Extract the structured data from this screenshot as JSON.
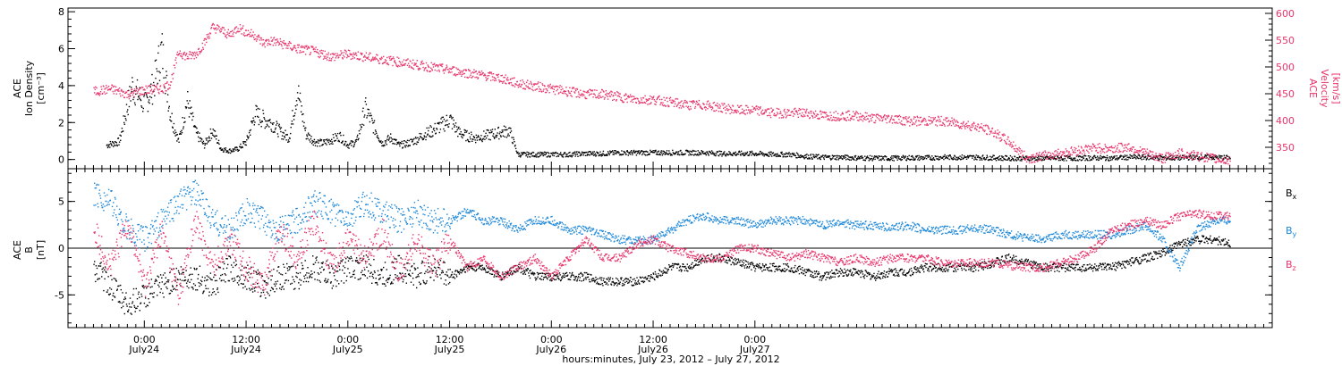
{
  "chart_data": [
    {
      "type": "scatter",
      "panel": "top",
      "ylabel_lines": [
        "ACE",
        "Ion Density",
        "[cm⁻³]"
      ],
      "ylim": [
        -0.5,
        8.2
      ],
      "yticks": [
        "0",
        "2",
        "4",
        "6",
        "8"
      ],
      "ytick_values": [
        0,
        2,
        4,
        6,
        8
      ],
      "y2label_lines": [
        "ACE",
        "Velocity",
        "[km/s]"
      ],
      "y2lim": [
        310,
        610
      ],
      "y2ticks": [
        "350",
        "400",
        "450",
        "500",
        "550",
        "600"
      ],
      "y2tick_values": [
        350,
        400,
        450,
        500,
        550,
        600
      ],
      "series": [
        {
          "axis": "left",
          "color": "#000000",
          "x": [
            -4.5,
            -3,
            -1.5,
            0,
            1,
            2,
            3,
            4,
            5,
            6,
            7,
            8,
            9,
            10,
            11,
            12,
            13,
            14,
            15,
            16,
            17,
            18,
            19,
            20,
            21,
            22,
            23,
            24,
            25,
            26,
            27,
            28,
            29,
            30,
            31,
            32,
            33,
            34,
            35,
            36,
            37,
            38,
            39,
            40,
            41,
            42,
            43,
            44,
            46,
            48,
            50,
            52,
            54,
            56,
            58,
            60,
            62,
            64,
            66,
            68,
            70,
            72,
            74,
            76,
            78,
            80,
            82,
            84,
            86,
            88,
            90,
            92,
            94,
            96,
            98,
            100,
            102,
            104,
            106,
            108,
            110,
            112,
            114,
            116,
            118,
            120,
            122,
            124,
            126,
            128
          ],
          "y": [
            0.8,
            1.0,
            4.0,
            3.0,
            4.0,
            6.0,
            2.5,
            1.0,
            3.2,
            1.5,
            0.8,
            1.6,
            0.6,
            0.5,
            0.6,
            1.0,
            2.5,
            2.2,
            2.0,
            1.5,
            1.2,
            3.8,
            1.4,
            1.0,
            0.9,
            1.1,
            1.3,
            0.8,
            1.0,
            2.8,
            1.8,
            0.9,
            1.2,
            0.8,
            0.9,
            1.1,
            1.4,
            1.6,
            1.9,
            2.2,
            1.5,
            1.3,
            1.2,
            1.3,
            1.4,
            1.5,
            1.6,
            0.3,
            0.3,
            0.3,
            0.3,
            0.35,
            0.35,
            0.4,
            0.4,
            0.4,
            0.4,
            0.4,
            0.4,
            0.35,
            0.35,
            0.35,
            0.3,
            0.3,
            0.2,
            0.15,
            0.15,
            0.12,
            0.1,
            0.1,
            0.12,
            0.12,
            0.15,
            0.15,
            0.15,
            0.12,
            0.1,
            0.1,
            0.1,
            0.1,
            0.1,
            0.12,
            0.1,
            0.15,
            0.15,
            0.12,
            0.12,
            0.15,
            0.15,
            0.12
          ]
        },
        {
          "axis": "right",
          "color": "#e8356b",
          "x": [
            -6,
            -4,
            -2,
            0,
            2,
            3,
            4,
            5,
            6,
            7,
            8,
            9,
            10,
            11,
            12,
            13,
            14,
            15,
            16,
            17,
            18,
            20,
            22,
            24,
            26,
            28,
            30,
            32,
            34,
            36,
            38,
            40,
            42,
            44,
            46,
            48,
            50,
            52,
            54,
            56,
            58,
            60,
            62,
            64,
            66,
            68,
            70,
            72,
            74,
            76,
            78,
            80,
            82,
            84,
            86,
            88,
            90,
            92,
            94,
            96,
            98,
            100,
            102,
            104,
            106,
            108,
            110,
            112,
            114,
            116,
            118,
            120,
            122,
            124,
            126,
            128
          ],
          "y": [
            455,
            460,
            450,
            458,
            460,
            470,
            530,
            520,
            525,
            545,
            575,
            570,
            560,
            575,
            565,
            560,
            545,
            550,
            545,
            540,
            535,
            530,
            520,
            525,
            520,
            515,
            510,
            505,
            500,
            495,
            490,
            485,
            480,
            470,
            465,
            460,
            455,
            450,
            450,
            445,
            440,
            440,
            435,
            430,
            430,
            425,
            420,
            420,
            415,
            415,
            415,
            410,
            410,
            410,
            405,
            405,
            400,
            400,
            400,
            395,
            390,
            380,
            360,
            330,
            335,
            340,
            345,
            350,
            348,
            352,
            340,
            330,
            340,
            335,
            330,
            325
          ]
        }
      ]
    },
    {
      "type": "scatter",
      "panel": "bottom",
      "ylabel_lines": [
        "ACE",
        "B",
        "[nT]"
      ],
      "ylim": [
        -8.5,
        8.5
      ],
      "yticks": [
        "-5",
        "0",
        "5"
      ],
      "ytick_values": [
        -5,
        0,
        5
      ],
      "zero_line": true,
      "legend_position": "right",
      "series": [
        {
          "name": "Bx",
          "label_main": "B",
          "label_sub": "x",
          "color": "#000000",
          "x": [
            -6,
            -4,
            -2,
            0,
            2,
            4,
            6,
            8,
            10,
            12,
            14,
            16,
            18,
            20,
            22,
            24,
            26,
            28,
            30,
            32,
            34,
            36,
            38,
            40,
            42,
            44,
            46,
            48,
            50,
            52,
            54,
            56,
            58,
            60,
            62,
            64,
            66,
            68,
            70,
            72,
            74,
            76,
            78,
            80,
            82,
            84,
            86,
            88,
            90,
            92,
            94,
            96,
            98,
            100,
            102,
            104,
            106,
            108,
            110,
            112,
            114,
            116,
            118,
            120,
            122,
            124,
            126,
            128
          ],
          "y": [
            -2,
            -4,
            -6,
            -5,
            -4,
            -3,
            -3,
            -4,
            -2,
            -3,
            -4,
            -3,
            -3,
            -2,
            -3,
            -2,
            -2,
            -3,
            -2,
            -3,
            -2,
            -3,
            -2,
            -2,
            -3,
            -2,
            -3,
            -3,
            -3,
            -3,
            -3.5,
            -3.5,
            -3.5,
            -3,
            -2,
            -2,
            -1,
            -1,
            -1.5,
            -2,
            -2,
            -2,
            -2.5,
            -3,
            -2.5,
            -2.5,
            -3,
            -2.5,
            -2.5,
            -2,
            -2,
            -2,
            -2,
            -1.5,
            -1,
            -1.5,
            -2,
            -2,
            -2,
            -2,
            -2,
            -1.5,
            -1,
            -0.5,
            0.5,
            1,
            1,
            0.5
          ]
        },
        {
          "name": "By",
          "label_main": "B",
          "label_sub": "y",
          "color": "#1e88d8",
          "x": [
            -6,
            -4,
            -2,
            0,
            2,
            4,
            6,
            8,
            10,
            12,
            14,
            16,
            18,
            20,
            22,
            24,
            26,
            28,
            30,
            32,
            34,
            36,
            38,
            40,
            42,
            44,
            46,
            48,
            50,
            52,
            54,
            56,
            58,
            60,
            62,
            64,
            66,
            68,
            70,
            72,
            74,
            76,
            78,
            80,
            82,
            84,
            86,
            88,
            90,
            92,
            94,
            96,
            98,
            100,
            102,
            104,
            106,
            108,
            110,
            112,
            114,
            116,
            118,
            120,
            122,
            124,
            126,
            128
          ],
          "y": [
            6,
            5,
            2,
            1,
            3,
            5,
            6,
            3,
            2,
            4,
            3,
            2,
            3,
            5,
            4,
            3,
            5,
            4,
            3,
            4,
            3,
            3,
            4,
            3,
            3,
            2,
            3,
            3,
            2,
            2,
            1.5,
            1,
            0.8,
            1,
            2,
            3,
            3.5,
            3,
            3,
            2.5,
            3,
            3,
            3,
            2.5,
            2.8,
            2.5,
            2.5,
            2.2,
            2.5,
            2,
            2,
            2,
            2.2,
            2,
            1.5,
            1.2,
            1,
            1.5,
            1.5,
            1.5,
            1.5,
            2,
            2.5,
            1,
            -2,
            2,
            3,
            3
          ]
        },
        {
          "name": "Bz",
          "label_main": "B",
          "label_sub": "z",
          "color": "#e8356b",
          "x": [
            -6,
            -4,
            -2,
            0,
            2,
            4,
            6,
            8,
            10,
            12,
            14,
            16,
            18,
            20,
            22,
            24,
            26,
            28,
            30,
            32,
            34,
            36,
            38,
            40,
            42,
            44,
            46,
            48,
            50,
            52,
            54,
            56,
            58,
            60,
            62,
            64,
            66,
            68,
            70,
            72,
            74,
            76,
            78,
            80,
            82,
            84,
            86,
            88,
            90,
            92,
            94,
            96,
            98,
            100,
            102,
            104,
            106,
            108,
            110,
            112,
            114,
            116,
            118,
            120,
            122,
            124,
            126,
            128
          ],
          "y": [
            2,
            -2,
            3,
            -4,
            2,
            -5,
            3,
            -2,
            1,
            -2,
            -4,
            2,
            -1,
            3,
            -2,
            1,
            -1,
            2,
            -3,
            1,
            -2,
            1,
            -2,
            -1,
            -3,
            -2,
            -1,
            -3,
            -1,
            1,
            -1,
            -1,
            0.5,
            1,
            0,
            -0.5,
            -1,
            -1,
            0,
            0,
            -0.5,
            -1,
            -0.5,
            -1,
            -1.5,
            -1,
            -1.5,
            -1,
            -1,
            -1,
            -1.5,
            -1.5,
            -1.5,
            -1.5,
            -1.8,
            -2,
            -2,
            -1.5,
            -1,
            0,
            2,
            2.5,
            3,
            2.5,
            3.5,
            3.8,
            3.5,
            3.5
          ]
        }
      ]
    }
  ],
  "x_axis": {
    "xlim": [
      -9,
      133
    ],
    "minor_tick_step": 1,
    "major_ticks": [
      {
        "hours": 0,
        "time": "0:00",
        "date": "July24"
      },
      {
        "hours": 12,
        "time": "12:00",
        "date": "July24"
      },
      {
        "hours": 24,
        "time": "0:00",
        "date": "July25"
      },
      {
        "hours": 36,
        "time": "12:00",
        "date": "July25"
      },
      {
        "hours": 48,
        "time": "0:00",
        "date": "July26"
      },
      {
        "hours": 60,
        "time": "12:00",
        "date": "July26"
      },
      {
        "hours": 72,
        "time": "0:00",
        "date": "July27"
      }
    ],
    "title": "hours:minutes, July 23, 2012 – July 27, 2012"
  }
}
